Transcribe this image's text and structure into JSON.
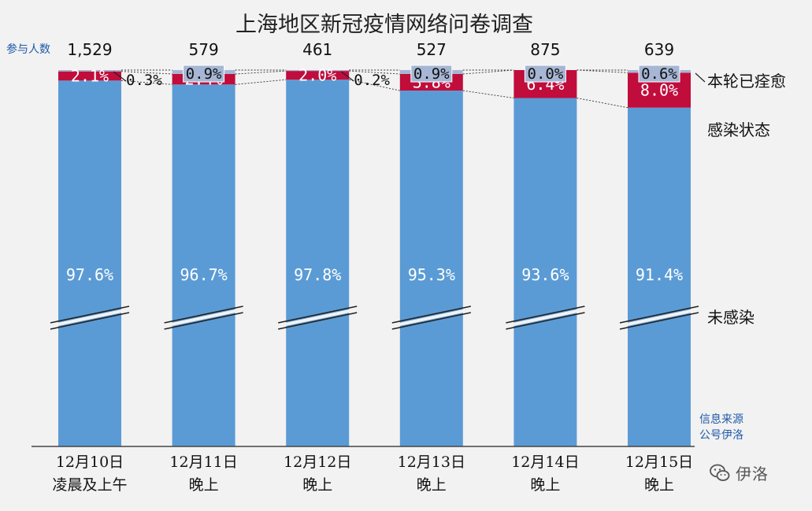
{
  "chart_data": {
    "type": "bar",
    "stacked": true,
    "title": "上海地区新冠疫情网络问卷调查",
    "categories": [
      [
        "12月10日",
        "凌晨及上午"
      ],
      [
        "12月11日",
        "晚上"
      ],
      [
        "12月12日",
        "晚上"
      ],
      [
        "12月13日",
        "晚上"
      ],
      [
        "12月14日",
        "晚上"
      ],
      [
        "12月15日",
        "晚上"
      ]
    ],
    "participants_label": "参与人数",
    "participants": [
      "1,529",
      "579",
      "461",
      "527",
      "875",
      "639"
    ],
    "series": [
      {
        "name": "未感染",
        "color": "#5b9bd5",
        "values": [
          97.6,
          96.7,
          97.8,
          95.3,
          93.6,
          91.4
        ],
        "labels": [
          "97.6%",
          "96.7%",
          "97.8%",
          "95.3%",
          "93.6%",
          "91.4%"
        ]
      },
      {
        "name": "感染状态",
        "color": "#c00d3c",
        "values": [
          2.1,
          2.4,
          2.0,
          3.8,
          6.4,
          8.0
        ],
        "labels": [
          "2.1%",
          "2.4%",
          "2.0%",
          "3.8%",
          "6.4%",
          "8.0%"
        ]
      },
      {
        "name": "本轮已痊愈",
        "color": "#a6b6d4",
        "values": [
          0.3,
          0.9,
          0.2,
          0.9,
          0.0,
          0.6
        ],
        "labels": [
          "0.3%",
          "0.9%",
          "0.2%",
          "0.9%",
          "0.0%",
          "0.6%"
        ]
      }
    ],
    "axis_break": true,
    "source": [
      "信息来源",
      "公号伊洛"
    ],
    "grid": false
  },
  "watermark": {
    "text": "伊洛",
    "icon": "wechat-icon"
  }
}
